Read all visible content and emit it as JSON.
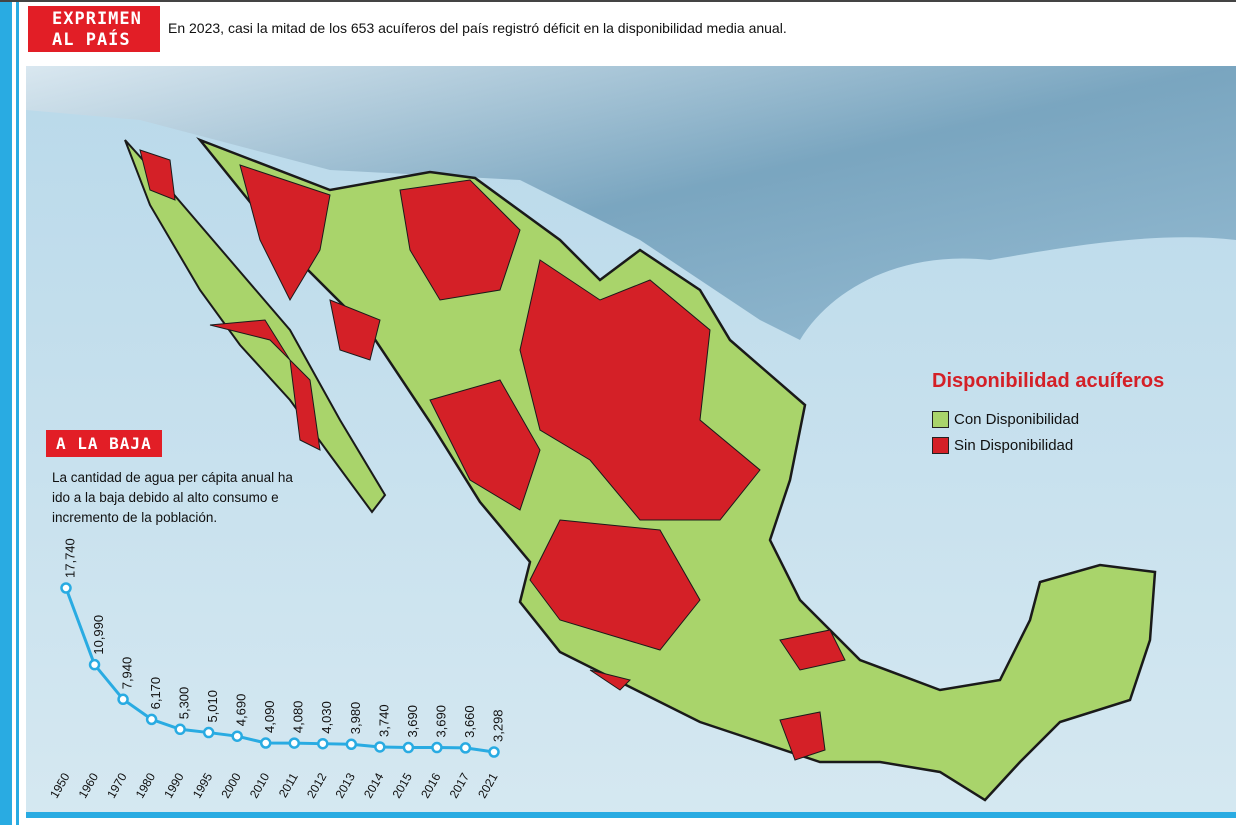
{
  "header": {
    "tag": [
      "EXPRIMEN",
      "AL PAÍS"
    ],
    "text": "En 2023, casi la mitad de los 653 acuíferos del país registró déficit en la disponibilidad media anual."
  },
  "map": {
    "legend": {
      "title": "Disponibilidad acuíferos",
      "items": [
        {
          "label": "Con Disponibilidad",
          "color": "#a9d46b"
        },
        {
          "label": "Sin Disponibilidad",
          "color": "#d42027"
        }
      ]
    }
  },
  "chart_data": {
    "type": "line",
    "title": "A LA BAJA",
    "subtitle": "La  cantidad de agua per cápita anual ha ido a la baja debido al alto consumo e incremento de la población.",
    "categories": [
      "1950",
      "1960",
      "1970",
      "1980",
      "1990",
      "1995",
      "2000",
      "2010",
      "2011",
      "2012",
      "2013",
      "2014",
      "2015",
      "2016",
      "2017",
      "2021"
    ],
    "values": [
      17740,
      10990,
      7940,
      6170,
      5300,
      5010,
      4690,
      4090,
      4080,
      4030,
      3980,
      3740,
      3690,
      3690,
      3660,
      3298
    ],
    "value_labels": [
      "17,740",
      "10,990",
      "7,940",
      "6,170",
      "5,300",
      "5,010",
      "4,690",
      "4,090",
      "4,080",
      "4,030",
      "3,980",
      "3,740",
      "3,690",
      "3,690",
      "3,660",
      "3,298"
    ],
    "color": "#29abe2"
  }
}
